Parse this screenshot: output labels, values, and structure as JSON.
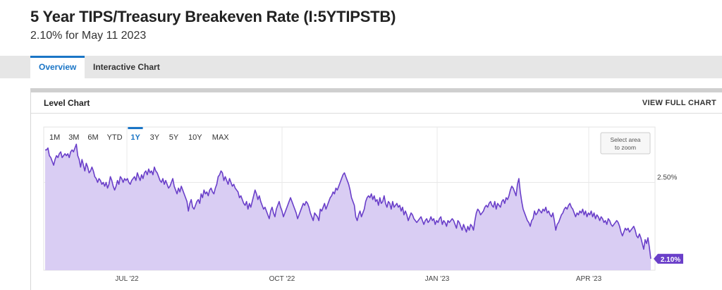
{
  "header": {
    "title": "5 Year TIPS/Treasury Breakeven Rate (I:5YTIPSTB)",
    "subtitle": "2.10% for May 11 2023"
  },
  "tabs": [
    {
      "label": "Overview",
      "active": true
    },
    {
      "label": "Interactive Chart",
      "active": false
    }
  ],
  "panel": {
    "title": "Level Chart",
    "full_chart_label": "VIEW FULL CHART"
  },
  "range_buttons": {
    "items": [
      "1M",
      "3M",
      "6M",
      "YTD",
      "1Y",
      "3Y",
      "5Y",
      "10Y",
      "MAX"
    ],
    "selected": "1Y"
  },
  "zoom_hint": "Select area to zoom",
  "colors": {
    "accent": "#1a75c6",
    "line": "#6a3fc9",
    "fill": "#d9cdf3",
    "badge": "#6a3fc9"
  },
  "chart_data": {
    "type": "area",
    "x_tick_labels": [
      "JUL '22",
      "OCT '22",
      "JAN '23",
      "APR '23"
    ],
    "y_tick_labels": [
      "2.50%"
    ],
    "current_value_label": "2.10%",
    "ylim": [
      2.04,
      2.79
    ],
    "grid": true,
    "series": [
      {
        "values": [
          2.67,
          2.67,
          2.68,
          2.64,
          2.63,
          2.61,
          2.59,
          2.62,
          2.64,
          2.63,
          2.65,
          2.66,
          2.63,
          2.64,
          2.65,
          2.64,
          2.65,
          2.63,
          2.66,
          2.67,
          2.66,
          2.68,
          2.7,
          2.64,
          2.62,
          2.58,
          2.62,
          2.59,
          2.56,
          2.6,
          2.58,
          2.55,
          2.56,
          2.58,
          2.56,
          2.53,
          2.52,
          2.5,
          2.52,
          2.51,
          2.49,
          2.5,
          2.48,
          2.5,
          2.47,
          2.49,
          2.53,
          2.51,
          2.48,
          2.46,
          2.48,
          2.51,
          2.49,
          2.53,
          2.52,
          2.5,
          2.52,
          2.51,
          2.52,
          2.5,
          2.49,
          2.51,
          2.52,
          2.53,
          2.51,
          2.55,
          2.53,
          2.51,
          2.54,
          2.52,
          2.55,
          2.56,
          2.54,
          2.57,
          2.55,
          2.56,
          2.54,
          2.58,
          2.56,
          2.55,
          2.53,
          2.51,
          2.5,
          2.52,
          2.49,
          2.51,
          2.49,
          2.47,
          2.48,
          2.5,
          2.52,
          2.48,
          2.46,
          2.44,
          2.47,
          2.45,
          2.48,
          2.46,
          2.44,
          2.42,
          2.4,
          2.35,
          2.39,
          2.41,
          2.37,
          2.36,
          2.38,
          2.4,
          2.41,
          2.39,
          2.44,
          2.42,
          2.46,
          2.44,
          2.45,
          2.43,
          2.46,
          2.47,
          2.45,
          2.44,
          2.47,
          2.49,
          2.53,
          2.54,
          2.56,
          2.55,
          2.51,
          2.53,
          2.51,
          2.49,
          2.52,
          2.5,
          2.48,
          2.49,
          2.47,
          2.46,
          2.45,
          2.42,
          2.43,
          2.41,
          2.39,
          2.38,
          2.4,
          2.36,
          2.39,
          2.37,
          2.4,
          2.43,
          2.46,
          2.44,
          2.41,
          2.43,
          2.4,
          2.38,
          2.36,
          2.37,
          2.35,
          2.33,
          2.31,
          2.35,
          2.37,
          2.34,
          2.32,
          2.36,
          2.38,
          2.4,
          2.37,
          2.35,
          2.32,
          2.34,
          2.36,
          2.38,
          2.4,
          2.42,
          2.4,
          2.38,
          2.36,
          2.34,
          2.31,
          2.33,
          2.35,
          2.37,
          2.39,
          2.38,
          2.4,
          2.39,
          2.37,
          2.34,
          2.32,
          2.3,
          2.34,
          2.33,
          2.32,
          2.3,
          2.36,
          2.35,
          2.37,
          2.39,
          2.36,
          2.38,
          2.4,
          2.42,
          2.43,
          2.45,
          2.44,
          2.47,
          2.46,
          2.48,
          2.5,
          2.52,
          2.54,
          2.55,
          2.53,
          2.51,
          2.49,
          2.46,
          2.42,
          2.4,
          2.38,
          2.32,
          2.3,
          2.33,
          2.35,
          2.32,
          2.34,
          2.36,
          2.4,
          2.42,
          2.43,
          2.42,
          2.44,
          2.41,
          2.43,
          2.4,
          2.41,
          2.38,
          2.42,
          2.39,
          2.4,
          2.43,
          2.39,
          2.37,
          2.4,
          2.39,
          2.36,
          2.4,
          2.37,
          2.38,
          2.39,
          2.37,
          2.38,
          2.35,
          2.37,
          2.33,
          2.35,
          2.33,
          2.3,
          2.32,
          2.34,
          2.33,
          2.31,
          2.3,
          2.29,
          2.3,
          2.31,
          2.32,
          2.3,
          2.28,
          2.3,
          2.31,
          2.29,
          2.3,
          2.32,
          2.3,
          2.31,
          2.28,
          2.3,
          2.29,
          2.31,
          2.32,
          2.28,
          2.3,
          2.29,
          2.27,
          2.3,
          2.29,
          2.3,
          2.31,
          2.3,
          2.28,
          2.26,
          2.3,
          2.29,
          2.27,
          2.25,
          2.28,
          2.26,
          2.24,
          2.27,
          2.25,
          2.28,
          2.27,
          2.25,
          2.3,
          2.34,
          2.36,
          2.35,
          2.33,
          2.34,
          2.35,
          2.37,
          2.38,
          2.37,
          2.39,
          2.4,
          2.38,
          2.37,
          2.4,
          2.36,
          2.39,
          2.38,
          2.37,
          2.4,
          2.41,
          2.39,
          2.42,
          2.41,
          2.43,
          2.46,
          2.48,
          2.47,
          2.45,
          2.43,
          2.49,
          2.52,
          2.45,
          2.4,
          2.36,
          2.34,
          2.32,
          2.3,
          2.29,
          2.27,
          2.3,
          2.31,
          2.35,
          2.33,
          2.34,
          2.36,
          2.35,
          2.34,
          2.36,
          2.35,
          2.37,
          2.34,
          2.35,
          2.33,
          2.32,
          2.34,
          2.3,
          2.25,
          2.28,
          2.29,
          2.31,
          2.33,
          2.34,
          2.36,
          2.37,
          2.36,
          2.38,
          2.39,
          2.37,
          2.36,
          2.34,
          2.32,
          2.34,
          2.33,
          2.35,
          2.34,
          2.36,
          2.33,
          2.35,
          2.32,
          2.34,
          2.33,
          2.35,
          2.32,
          2.34,
          2.31,
          2.33,
          2.32,
          2.3,
          2.32,
          2.31,
          2.29,
          2.3,
          2.28,
          2.31,
          2.3,
          2.28,
          2.27,
          2.28,
          2.29,
          2.3,
          2.29,
          2.27,
          2.24,
          2.22,
          2.24,
          2.26,
          2.25,
          2.26,
          2.24,
          2.25,
          2.26,
          2.27,
          2.25,
          2.22,
          2.21,
          2.23,
          2.21,
          2.18,
          2.15,
          2.2,
          2.18,
          2.21,
          2.16,
          2.1
        ]
      }
    ]
  }
}
